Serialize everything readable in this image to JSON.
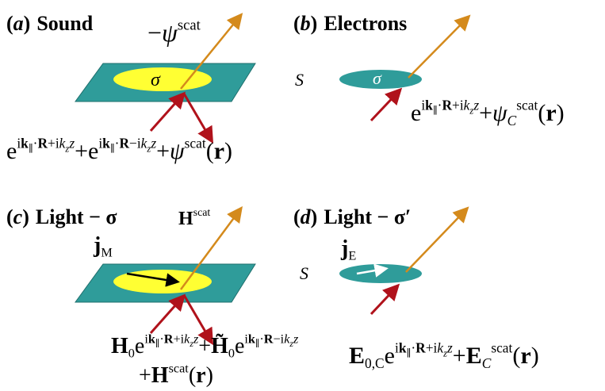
{
  "panels": [
    {
      "label": [
        "(",
        "a",
        ")"
      ],
      "title": "Sound",
      "beam_label": [
        "−",
        "ψ",
        "scat"
      ],
      "disk_label": "σ",
      "equation": [
        [
          "e",
          "i",
          "k",
          "∥",
          "·",
          "R",
          "+i",
          "k",
          "z",
          "z",
          "+e",
          "i",
          "k",
          "∥",
          "·",
          "R",
          "−i",
          "k",
          "z",
          "z",
          "+",
          "ψ",
          "scat",
          "(",
          "r",
          ")"
        ]
      ]
    },
    {
      "label": [
        "(",
        "b",
        ")"
      ],
      "title": "Electrons",
      "surface_label": "S",
      "disk_label": "σ",
      "equation": [
        [
          "e",
          "i",
          "k",
          "∥",
          "·",
          "R",
          "+i",
          "k",
          "z",
          "z",
          "+",
          "ψ",
          "C",
          "scat",
          "(",
          "r",
          ")"
        ]
      ]
    },
    {
      "label": [
        "(",
        "c",
        ")"
      ],
      "title": "Light − σ",
      "beam_label": [
        "H",
        "scat"
      ],
      "current_label": [
        "j",
        "M"
      ],
      "equation": [
        [
          "H",
          "0",
          "e",
          "i",
          "k",
          "∥",
          "·",
          "R",
          "+i",
          "k",
          "z",
          "z",
          "+",
          "H̃",
          "0",
          "e",
          "i",
          "k",
          "∥",
          "·",
          "R",
          "−i",
          "k",
          "z",
          "z"
        ],
        [
          "+",
          "H",
          "scat",
          "(",
          "r",
          ")"
        ]
      ]
    },
    {
      "label": [
        "(",
        "d",
        ")"
      ],
      "title": "Light − σ′",
      "surface_label": "S",
      "current_label": [
        "j",
        "E"
      ],
      "equation": [
        [
          "E",
          "0,C",
          "e",
          "i",
          "k",
          "∥",
          "·",
          "R",
          "+i",
          "k",
          "z",
          "z",
          "+",
          "E",
          "C",
          "scat",
          "(",
          "r",
          ")"
        ]
      ]
    }
  ]
}
